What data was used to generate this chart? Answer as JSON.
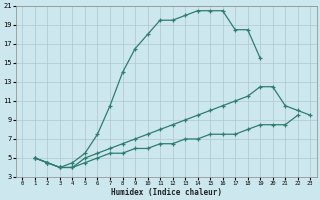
{
  "xlabel": "Humidex (Indice chaleur)",
  "bg_color": "#cce8ee",
  "grid_color": "#b0c8cc",
  "line_color": "#2e7d6e",
  "line1_x": [
    1,
    2,
    3,
    4,
    5,
    6,
    7,
    8,
    9,
    10,
    11,
    12,
    13,
    14,
    15,
    16,
    17,
    18,
    19
  ],
  "line1_y": [
    5,
    4.5,
    4,
    4.5,
    5.5,
    7.5,
    10.5,
    14,
    16.5,
    18,
    19.5,
    19.5,
    20,
    20.5,
    20.5,
    20.5,
    18.5,
    18.5,
    15.5
  ],
  "line2_x": [
    1,
    2,
    3,
    4,
    5,
    6,
    7,
    8,
    9,
    10,
    11,
    12,
    13,
    14,
    15,
    16,
    17,
    18,
    19,
    20,
    21,
    22,
    23
  ],
  "line2_y": [
    5,
    4.5,
    4,
    4,
    5,
    5.5,
    6,
    6.5,
    7,
    7.5,
    8,
    8.5,
    9,
    9.5,
    10,
    10.5,
    11,
    11.5,
    12.5,
    12.5,
    10.5,
    10,
    9.5
  ],
  "line3_x": [
    1,
    2,
    3,
    4,
    5,
    6,
    7,
    8,
    9,
    10,
    11,
    12,
    13,
    14,
    15,
    16,
    17,
    18,
    19,
    20,
    21,
    22
  ],
  "line3_y": [
    5,
    4.5,
    4,
    4,
    4.5,
    5,
    5.5,
    5.5,
    6,
    6,
    6.5,
    6.5,
    7,
    7,
    7.5,
    7.5,
    7.5,
    8,
    8.5,
    8.5,
    8.5,
    9.5
  ],
  "xlim": [
    -0.5,
    23.5
  ],
  "ylim": [
    3,
    21
  ],
  "yticks": [
    3,
    5,
    7,
    9,
    11,
    13,
    15,
    17,
    19,
    21
  ],
  "xticks": [
    0,
    1,
    2,
    3,
    4,
    5,
    6,
    7,
    8,
    9,
    10,
    11,
    12,
    13,
    14,
    15,
    16,
    17,
    18,
    19,
    20,
    21,
    22,
    23
  ]
}
